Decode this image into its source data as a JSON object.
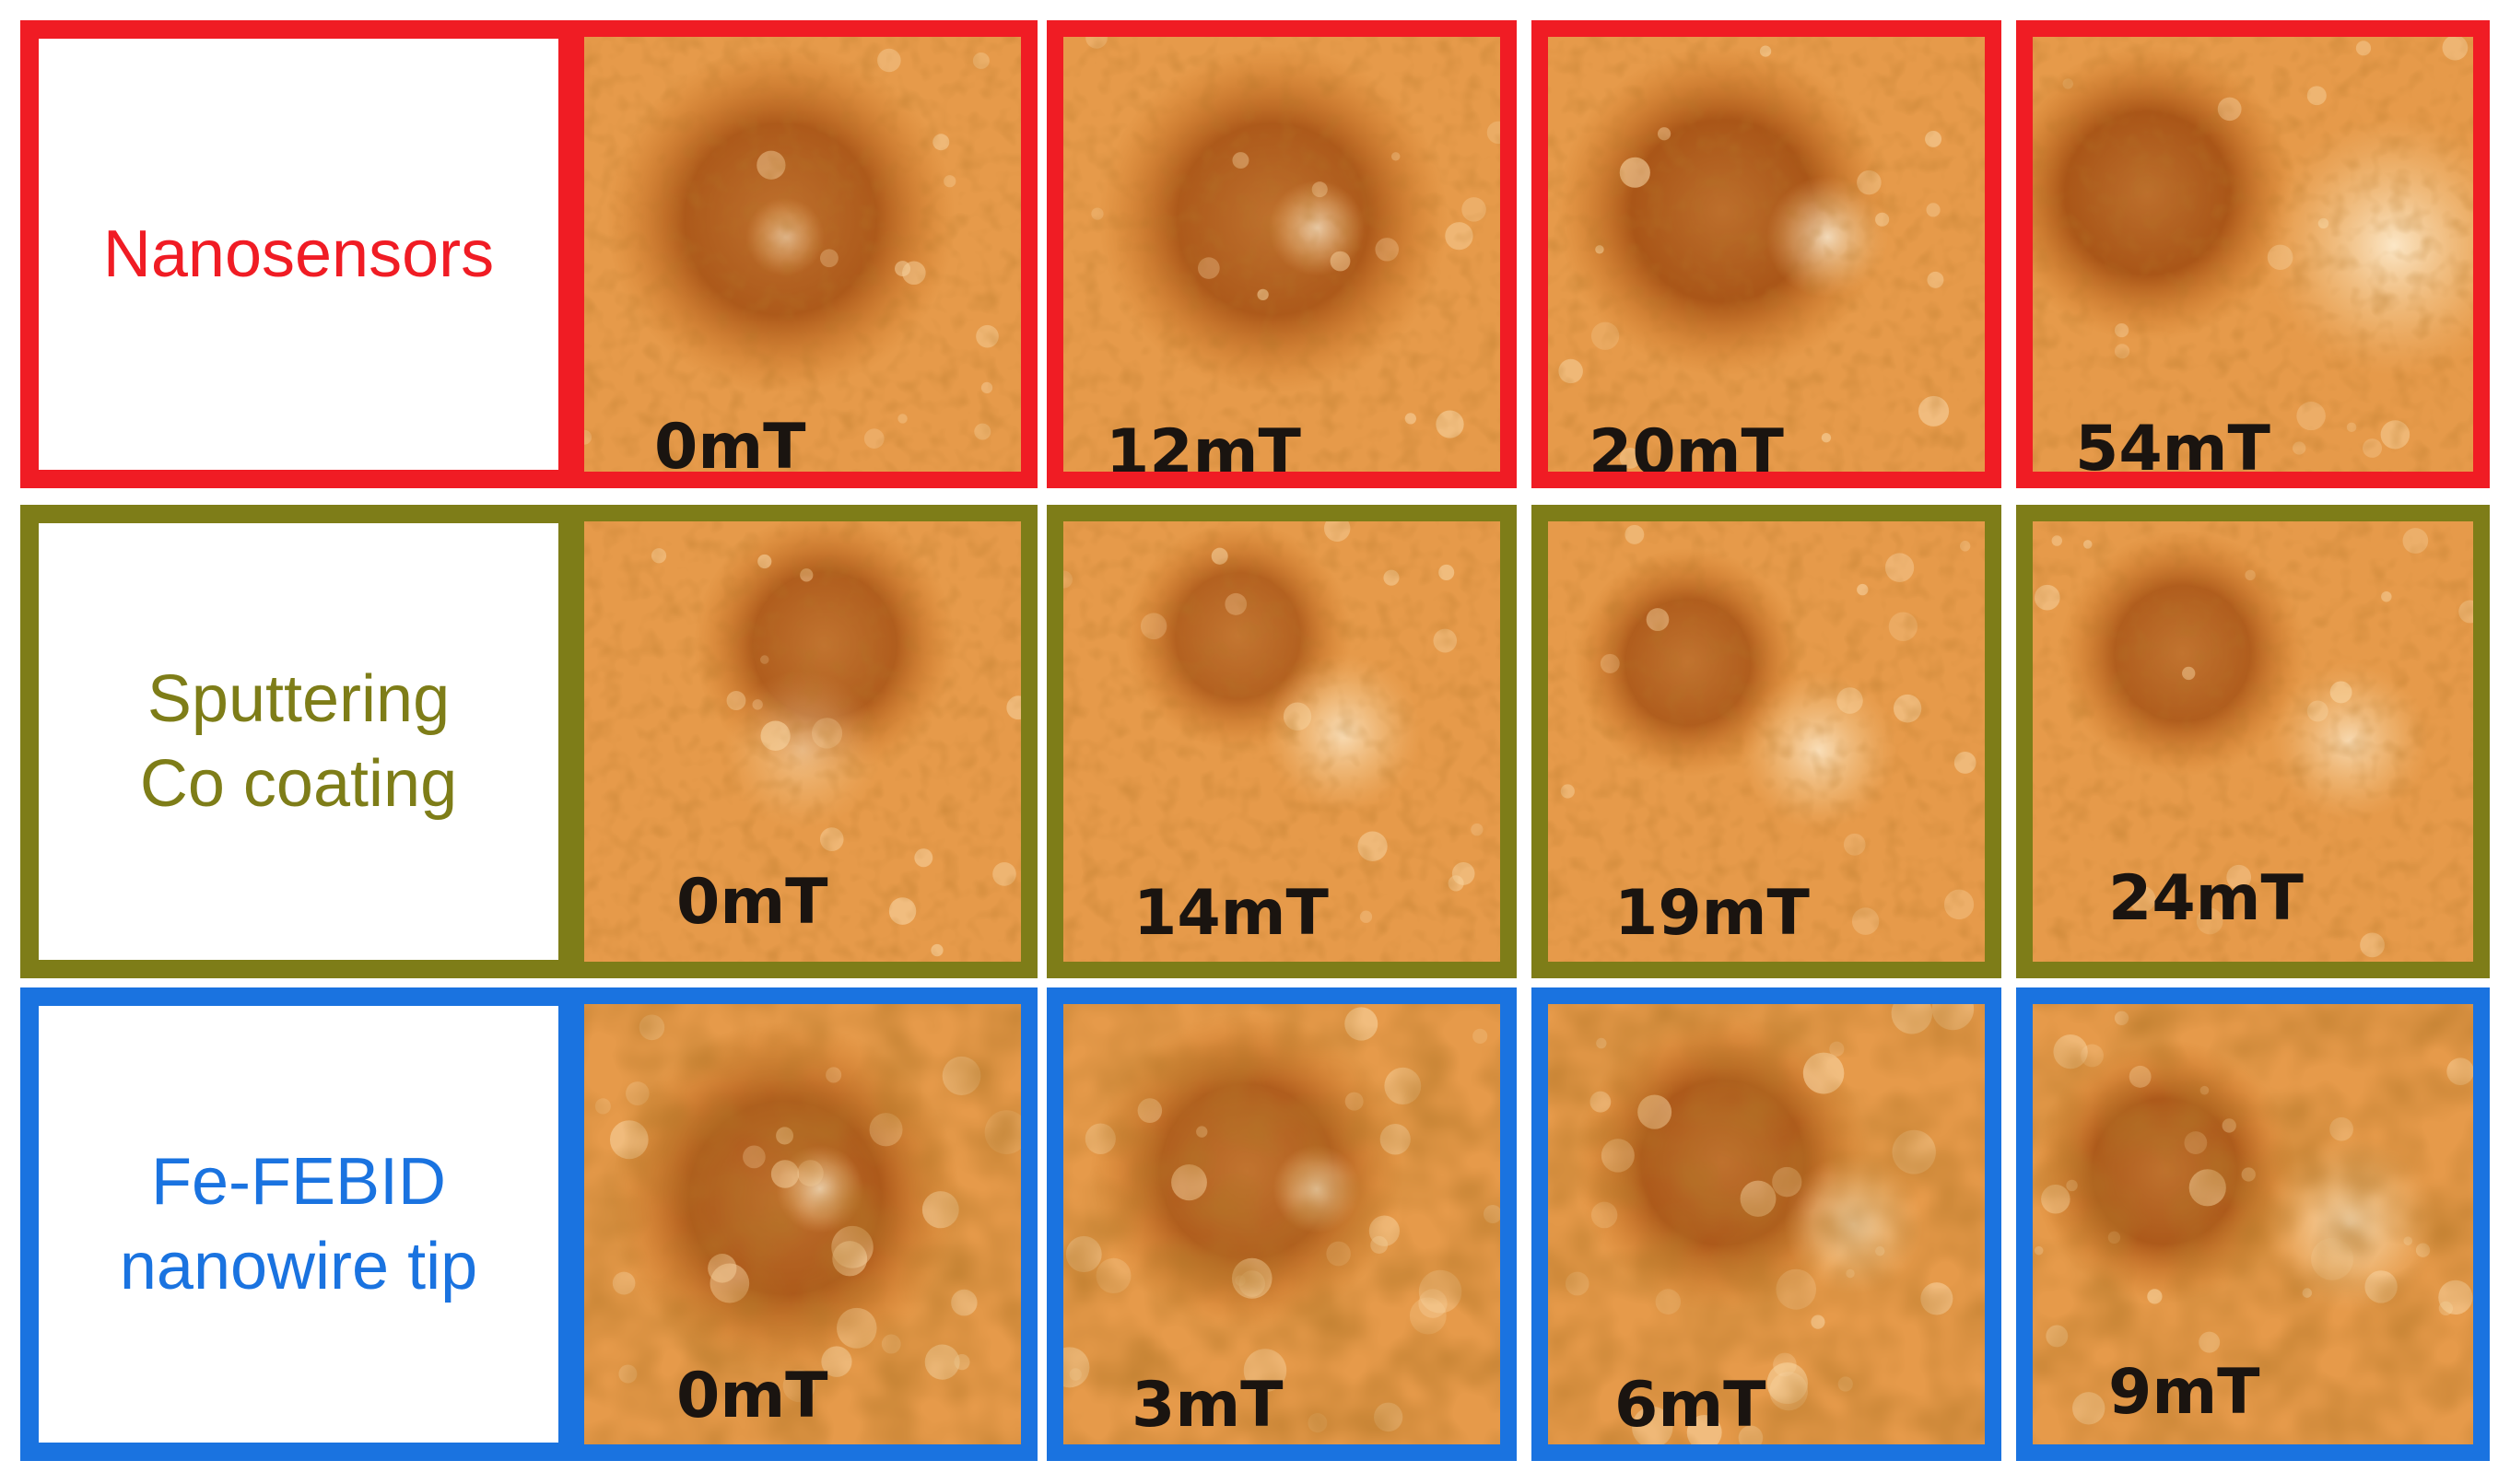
{
  "rows": [
    {
      "label_lines": [
        "Nanosensors"
      ],
      "color": "#f01c24",
      "fields": [
        "0mT",
        "12mT",
        "20mT",
        "54mT"
      ]
    },
    {
      "label_lines": [
        "Sputtering",
        "Co coating"
      ],
      "color": "#7e7d18",
      "fields": [
        "0mT",
        "14mT",
        "19mT",
        "24mT"
      ]
    },
    {
      "label_lines": [
        "Fe-FEBID",
        "nanowire tip"
      ],
      "color": "#1a73e0",
      "fields": [
        "0mT",
        "3mT",
        "6mT",
        "9mT"
      ]
    }
  ]
}
